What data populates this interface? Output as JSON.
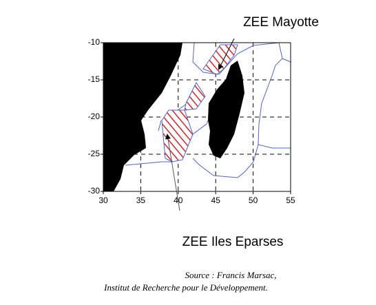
{
  "map": {
    "labels": {
      "mayotte": "ZEE Mayotte",
      "eparses": "ZEE Iles Eparses"
    },
    "source": [
      "Source : Francis Marsac,",
      "Institut de Recherche pour le Développement."
    ],
    "xlim": [
      30,
      55
    ],
    "ylim": [
      -30,
      -10
    ],
    "xticks": [
      30,
      35,
      40,
      45,
      50,
      55
    ],
    "yticks": [
      -10,
      -15,
      -20,
      -25,
      -30
    ],
    "grid": true
  }
}
